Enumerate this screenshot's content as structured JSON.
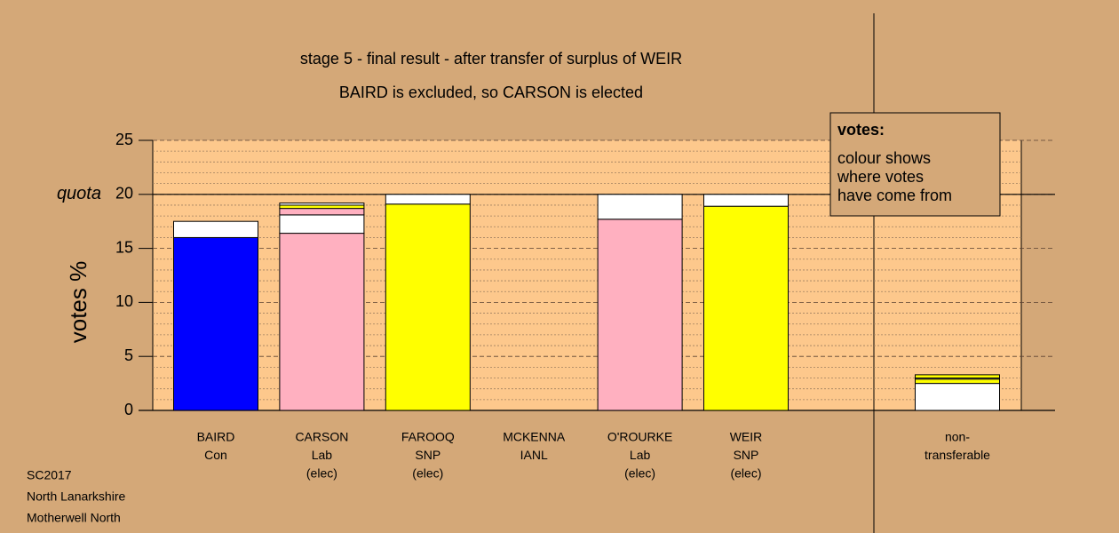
{
  "chart_data": {
    "type": "stacked_bar",
    "title": "stage 5 - final result - after transfer of surplus of WEIR",
    "subtitle": "BAIRD is excluded, so CARSON is elected",
    "ylabel": "votes %",
    "quota_label": "quota",
    "quota": 20,
    "ylim": [
      0,
      25
    ],
    "yticks": [
      0,
      5,
      10,
      15,
      20,
      25
    ],
    "minor_yticks": [
      1,
      2,
      3,
      4,
      6,
      7,
      8,
      9,
      11,
      12,
      13,
      14,
      16,
      17,
      18,
      19,
      21,
      22,
      23,
      24
    ],
    "bars": [
      {
        "label": [
          "BAIRD",
          "Con"
        ],
        "segments": [
          {
            "color": "#0000ff",
            "value": 16.0
          },
          {
            "color": "#ffffff",
            "value": 1.5
          }
        ]
      },
      {
        "label": [
          "CARSON",
          "Lab",
          "(elec)"
        ],
        "segments": [
          {
            "color": "#ffb0c0",
            "value": 16.4
          },
          {
            "color": "#ffffff",
            "value": 1.7
          },
          {
            "color": "#ffb0c0",
            "value": 0.6
          },
          {
            "color": "#ffff00",
            "value": 0.3
          },
          {
            "color": "#ffffff",
            "value": 0.2
          }
        ]
      },
      {
        "label": [
          "FAROOQ",
          "SNP",
          "(elec)"
        ],
        "segments": [
          {
            "color": "#ffff00",
            "value": 19.1
          },
          {
            "color": "#ffffff",
            "value": 0.9
          }
        ]
      },
      {
        "label": [
          "MCKENNA",
          "IANL"
        ],
        "segments": [
          {
            "color": "#ffffff",
            "value": 0
          }
        ]
      },
      {
        "label": [
          "O'ROURKE",
          "Lab",
          "(elec)"
        ],
        "segments": [
          {
            "color": "#ffb0c0",
            "value": 17.7
          },
          {
            "color": "#ffffff",
            "value": 2.3
          }
        ]
      },
      {
        "label": [
          "WEIR",
          "SNP",
          "(elec)"
        ],
        "segments": [
          {
            "color": "#ffff00",
            "value": 18.9
          },
          {
            "color": "#ffffff",
            "value": 1.1
          }
        ]
      }
    ],
    "side_bar": {
      "label": [
        "non-",
        "transferable"
      ],
      "segments": [
        {
          "color": "#ffffff",
          "value": 2.5
        },
        {
          "color": "#ffff00",
          "value": 0.4
        },
        {
          "color": "#ffffff",
          "value": 0.1
        },
        {
          "color": "#ffff00",
          "value": 0.3
        }
      ]
    },
    "note_title": "votes:",
    "note_lines": [
      "colour shows",
      "where votes",
      "have come from"
    ],
    "footer": [
      "SC2017",
      "North Lanarkshire",
      "Motherwell North"
    ]
  }
}
